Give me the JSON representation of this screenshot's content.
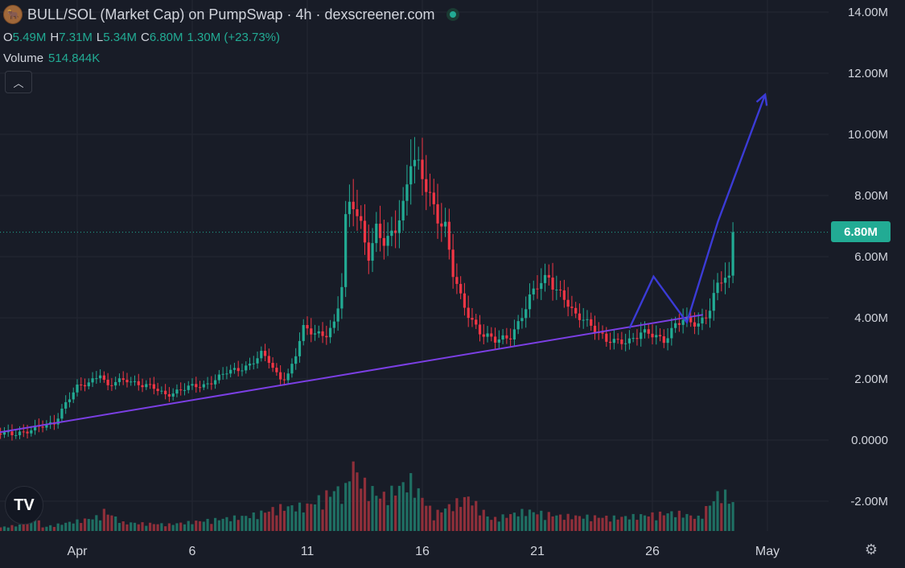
{
  "header": {
    "title": "BULL/SOL (Market Cap) on PumpSwap · 4h · dexscreener.com",
    "ohlc": [
      {
        "key": "O",
        "value": "5.49M"
      },
      {
        "key": "H",
        "value": "7.31M"
      },
      {
        "key": "L",
        "value": "5.34M"
      },
      {
        "key": "C",
        "value": "6.80M"
      }
    ],
    "change": "1.30M (+23.73%)",
    "volume_label": "Volume",
    "volume_value": "514.844K"
  },
  "last_price_label": "6.80M",
  "chart_data": {
    "type": "candlestick",
    "y_ticks": [
      "14.00M",
      "12.00M",
      "10.00M",
      "8.00M",
      "6.00M",
      "4.00M",
      "2.00M",
      "0.0000",
      "-2.00M"
    ],
    "ylim": [
      -3.2,
      14.4
    ],
    "x_ticks": [
      {
        "label": "Apr",
        "day": 1
      },
      {
        "label": "6",
        "day": 6
      },
      {
        "label": "11",
        "day": 11
      },
      {
        "label": "16",
        "day": 16
      },
      {
        "label": "21",
        "day": 21
      },
      {
        "label": "26",
        "day": 26
      },
      {
        "label": "May",
        "day": 31
      }
    ],
    "colors": {
      "up": "#22ab94",
      "down": "#f23645",
      "trendline": "#7b3fe4",
      "projection": "#3b3bd6",
      "grid": "#242733"
    },
    "path": [
      [
        -3.0,
        0.15
      ],
      [
        -1.0,
        0.3
      ],
      [
        0.0,
        0.6
      ],
      [
        0.5,
        1.2
      ],
      [
        1.0,
        1.7
      ],
      [
        1.5,
        1.9
      ],
      [
        2.0,
        2.2
      ],
      [
        2.3,
        1.7
      ],
      [
        2.7,
        1.9
      ],
      [
        3.2,
        2.0
      ],
      [
        3.8,
        1.8
      ],
      [
        4.3,
        1.7
      ],
      [
        4.8,
        1.5
      ],
      [
        5.3,
        1.6
      ],
      [
        5.8,
        1.7
      ],
      [
        6.5,
        1.8
      ],
      [
        7.0,
        2.0
      ],
      [
        7.5,
        2.2
      ],
      [
        8.0,
        2.3
      ],
      [
        8.5,
        2.5
      ],
      [
        9.0,
        2.8
      ],
      [
        9.3,
        2.6
      ],
      [
        9.6,
        2.2
      ],
      [
        9.9,
        2.0
      ],
      [
        10.2,
        2.2
      ],
      [
        10.5,
        2.8
      ],
      [
        10.8,
        3.6
      ],
      [
        11.3,
        3.5
      ],
      [
        11.8,
        3.5
      ],
      [
        12.2,
        3.8
      ],
      [
        12.5,
        5.0
      ],
      [
        12.7,
        7.5
      ],
      [
        13.0,
        7.8
      ],
      [
        13.3,
        7.2
      ],
      [
        13.7,
        6.0
      ],
      [
        14.0,
        6.8
      ],
      [
        14.4,
        6.3
      ],
      [
        14.8,
        7.0
      ],
      [
        15.2,
        7.8
      ],
      [
        15.5,
        9.2
      ],
      [
        15.8,
        8.8
      ],
      [
        16.2,
        8.2
      ],
      [
        16.6,
        7.5
      ],
      [
        17.0,
        7.0
      ],
      [
        17.3,
        5.5
      ],
      [
        17.7,
        4.5
      ],
      [
        18.1,
        4.0
      ],
      [
        18.6,
        3.5
      ],
      [
        19.2,
        3.2
      ],
      [
        19.8,
        3.4
      ],
      [
        20.2,
        3.9
      ],
      [
        20.6,
        4.5
      ],
      [
        21.0,
        5.0
      ],
      [
        21.5,
        5.4
      ],
      [
        21.8,
        5.0
      ],
      [
        22.2,
        4.6
      ],
      [
        22.6,
        4.0
      ],
      [
        23.0,
        4.0
      ],
      [
        23.5,
        3.7
      ],
      [
        24.0,
        3.2
      ],
      [
        24.5,
        3.2
      ],
      [
        25.0,
        3.3
      ],
      [
        25.5,
        3.5
      ],
      [
        26.0,
        3.4
      ],
      [
        26.5,
        3.3
      ],
      [
        27.0,
        3.8
      ],
      [
        27.3,
        3.9
      ],
      [
        27.6,
        3.8
      ],
      [
        28.0,
        3.8
      ],
      [
        28.4,
        4.2
      ],
      [
        28.8,
        5.0
      ],
      [
        29.1,
        5.3
      ],
      [
        29.4,
        5.1
      ],
      [
        29.55,
        6.8
      ]
    ],
    "volume_path": [
      [
        -3.0,
        0.01
      ],
      [
        -1.3,
        0.04
      ],
      [
        -0.8,
        0.13
      ],
      [
        -0.6,
        0.02
      ],
      [
        1.8,
        0.08
      ],
      [
        2.2,
        0.12
      ],
      [
        3.0,
        0.05
      ],
      [
        5.0,
        0.04
      ],
      [
        8.5,
        0.09
      ],
      [
        9.8,
        0.14
      ],
      [
        11.0,
        0.15
      ],
      [
        12.3,
        0.25
      ],
      [
        12.6,
        0.2
      ],
      [
        12.9,
        0.42
      ],
      [
        13.3,
        0.3
      ],
      [
        14.2,
        0.2
      ],
      [
        15.5,
        0.3
      ],
      [
        16.5,
        0.1
      ],
      [
        17.5,
        0.17
      ],
      [
        18.0,
        0.2
      ],
      [
        19.0,
        0.07
      ],
      [
        20.5,
        0.12
      ],
      [
        22.0,
        0.09
      ],
      [
        24.5,
        0.08
      ],
      [
        27.0,
        0.11
      ],
      [
        28.0,
        0.08
      ],
      [
        29.0,
        0.24
      ],
      [
        29.55,
        0.16
      ]
    ],
    "trendline": [
      [
        -3.2,
        0.15
      ],
      [
        28.2,
        4.1
      ]
    ],
    "projection": [
      [
        25.0,
        3.65
      ],
      [
        26.05,
        5.35
      ],
      [
        27.5,
        3.85
      ],
      [
        28.85,
        7.15
      ],
      [
        30.9,
        11.3
      ]
    ],
    "last_price": 6.8
  }
}
